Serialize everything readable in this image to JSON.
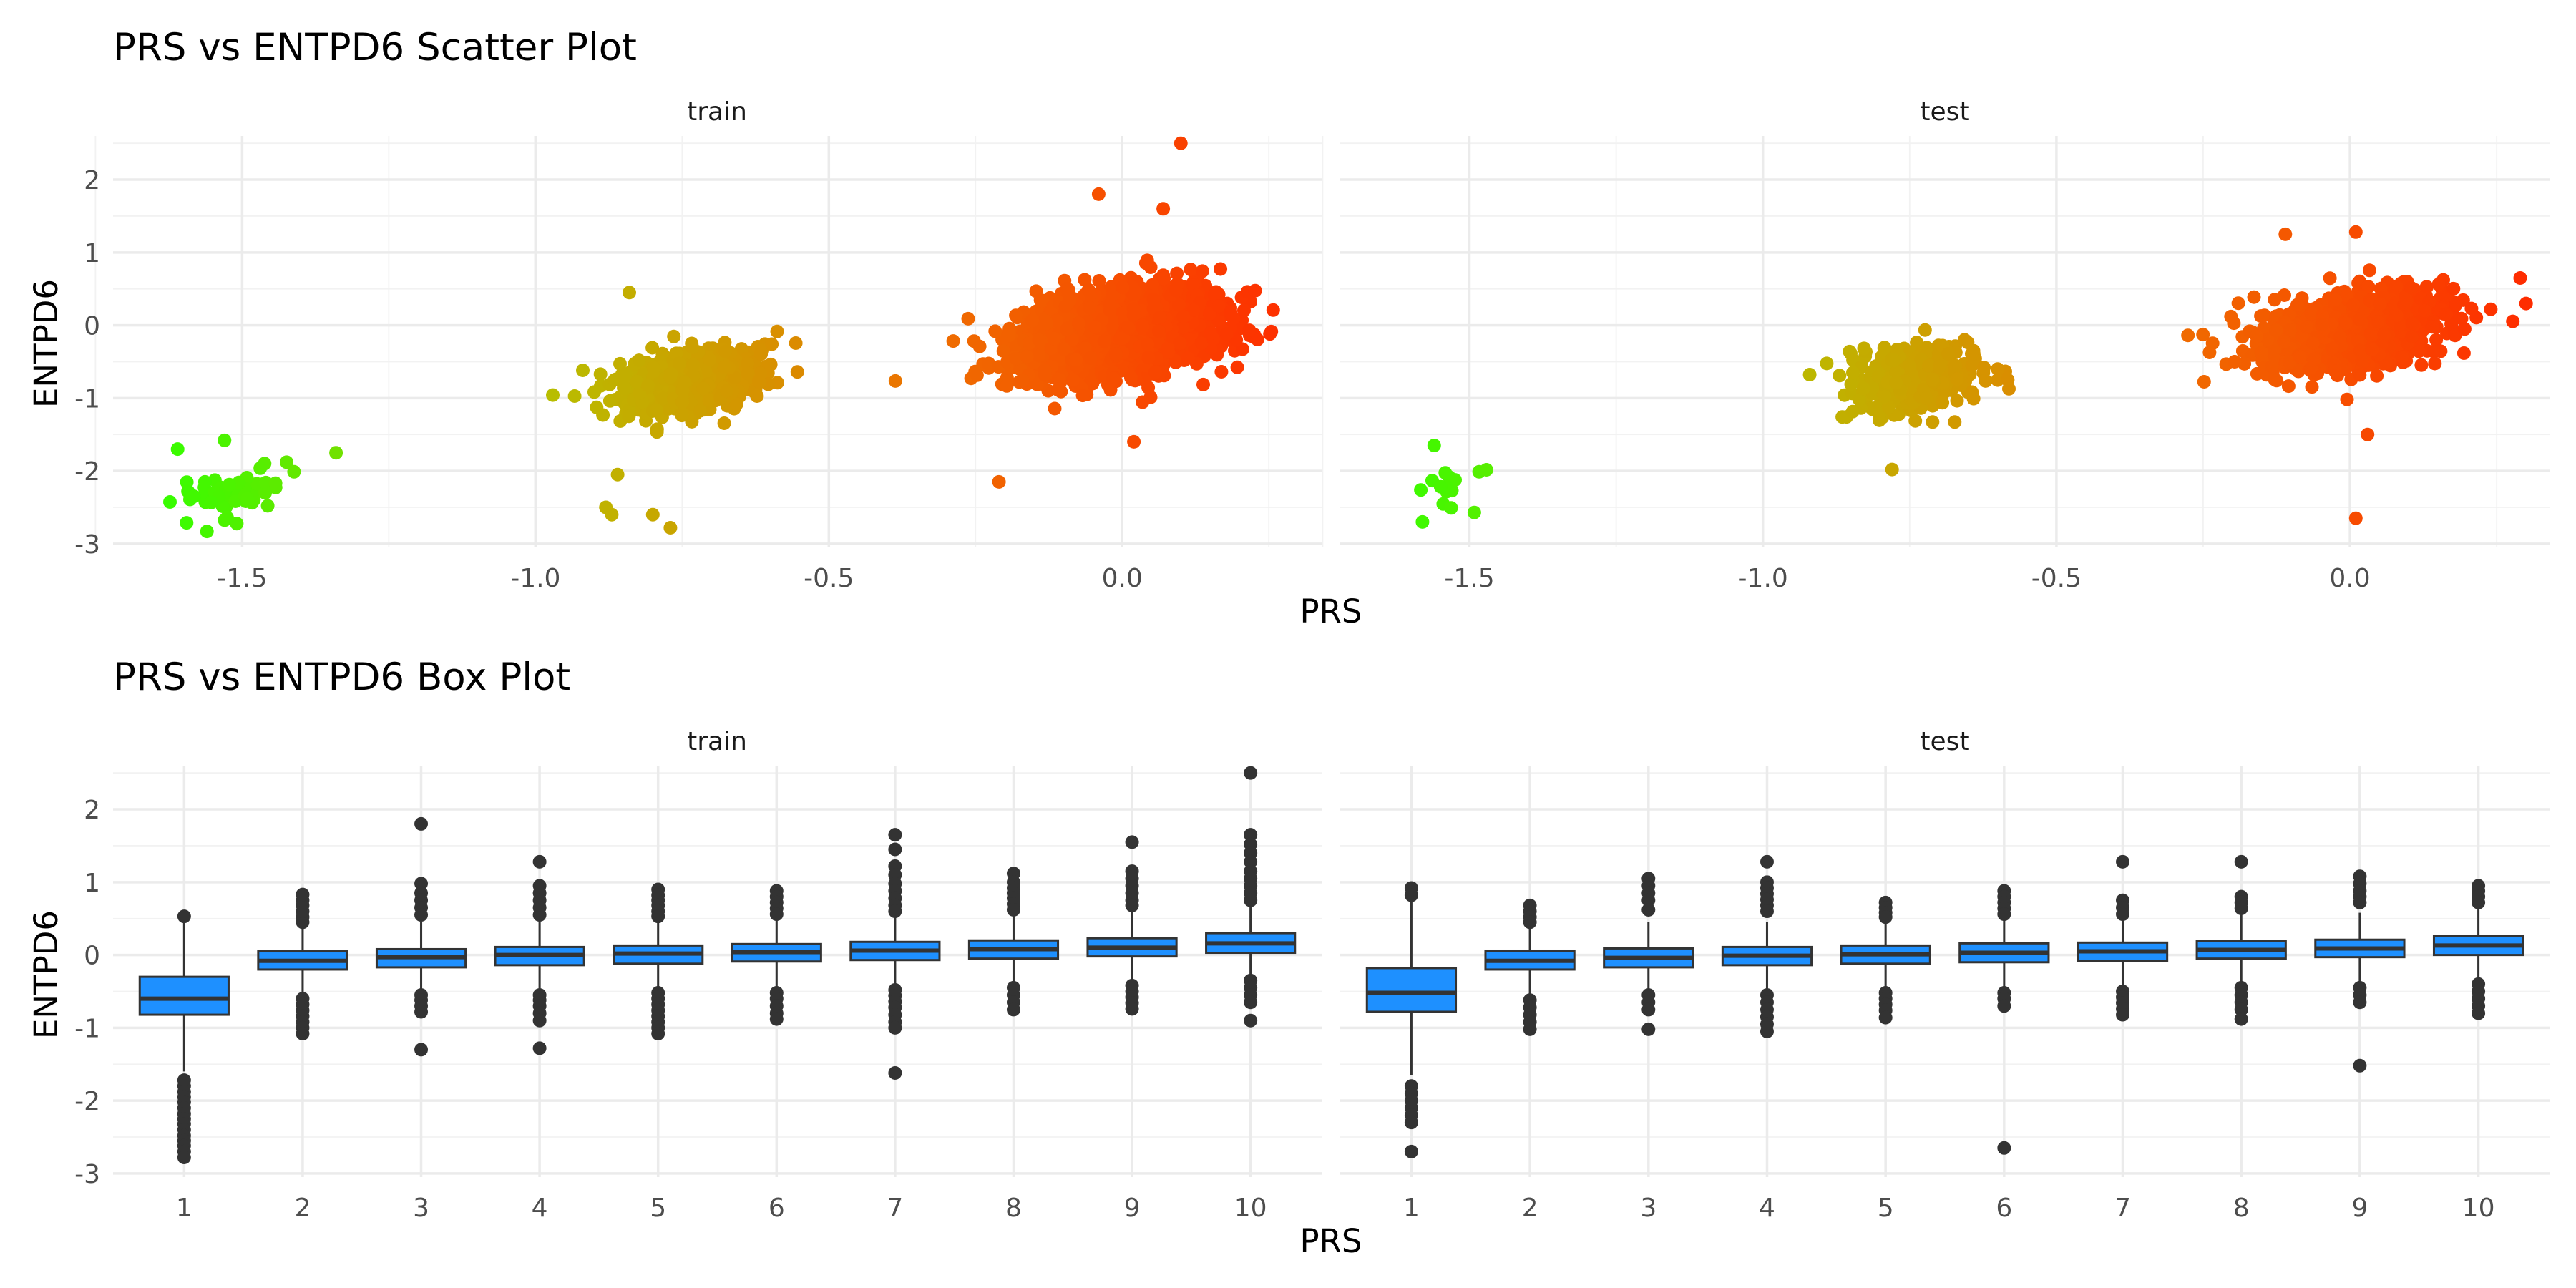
{
  "chart_data": [
    {
      "type": "scatter",
      "title": "PRS vs ENTPD6 Scatter Plot",
      "xlabel": "PRS",
      "ylabel": "ENTPD6",
      "xlim": [
        -1.72,
        0.34
      ],
      "ylim": [
        -3.05,
        2.6
      ],
      "x_ticks": [
        -1.5,
        -1.0,
        -0.5,
        0.0
      ],
      "x_tick_labels": [
        "-1.5",
        "-1.0",
        "-0.5",
        "0.0"
      ],
      "y_ticks": [
        -3,
        -2,
        -1,
        0,
        1,
        2
      ],
      "y_tick_labels": [
        "-3",
        "-2",
        "-1",
        "0",
        "1",
        "2"
      ],
      "grid": true,
      "color_gradient": [
        "#33ff00",
        "#b6c000",
        "#ee7000",
        "#ff2a00"
      ],
      "facets": [
        {
          "label": "train",
          "clusters": [
            {
              "x_mean": -1.5,
              "x_sd": 0.045,
              "y_mean": -2.3,
              "y_sd": 0.17,
              "n": 55
            },
            {
              "x_mean": -0.74,
              "x_sd": 0.06,
              "y_mean": -0.78,
              "y_sd": 0.2,
              "n": 700
            },
            {
              "x_mean": -0.01,
              "x_sd": 0.085,
              "y_mean": -0.12,
              "y_sd": 0.3,
              "n": 1800
            }
          ],
          "extra_points": [
            [
              0.1,
              2.5
            ],
            [
              -0.04,
              1.8
            ],
            [
              0.07,
              1.6
            ],
            [
              -0.84,
              0.45
            ],
            [
              -0.86,
              -2.05
            ],
            [
              -0.88,
              -2.5
            ],
            [
              -0.87,
              -2.6
            ],
            [
              -0.8,
              -2.6
            ],
            [
              -0.77,
              -2.78
            ],
            [
              -0.21,
              -2.15
            ],
            [
              0.02,
              -1.6
            ],
            [
              -1.61,
              -1.7
            ],
            [
              -1.34,
              -1.75
            ],
            [
              -1.53,
              -1.58
            ],
            [
              -1.56,
              -2.83
            ]
          ]
        },
        {
          "label": "test",
          "clusters": [
            {
              "x_mean": -1.54,
              "x_sd": 0.03,
              "y_mean": -2.15,
              "y_sd": 0.22,
              "n": 14
            },
            {
              "x_mean": -0.74,
              "x_sd": 0.055,
              "y_mean": -0.75,
              "y_sd": 0.22,
              "n": 340
            },
            {
              "x_mean": 0.0,
              "x_sd": 0.08,
              "y_mean": -0.08,
              "y_sd": 0.26,
              "n": 900
            }
          ],
          "extra_points": [
            [
              0.01,
              1.28
            ],
            [
              -0.11,
              1.25
            ],
            [
              0.29,
              0.65
            ],
            [
              0.3,
              0.3
            ],
            [
              -0.78,
              -1.98
            ],
            [
              0.03,
              -1.5
            ],
            [
              0.01,
              -2.65
            ],
            [
              -1.56,
              -1.65
            ],
            [
              -1.58,
              -2.7
            ],
            [
              -0.6,
              -0.6
            ]
          ]
        }
      ]
    },
    {
      "type": "box",
      "title": "PRS vs ENTPD6 Box Plot",
      "xlabel": "PRS",
      "ylabel": "ENTPD6",
      "categories": [
        "1",
        "2",
        "3",
        "4",
        "5",
        "6",
        "7",
        "8",
        "9",
        "10"
      ],
      "ylim": [
        -3.05,
        2.6
      ],
      "y_ticks": [
        -3,
        -2,
        -1,
        0,
        1,
        2
      ],
      "y_tick_labels": [
        "-3",
        "-2",
        "-1",
        "0",
        "1",
        "2"
      ],
      "grid": true,
      "box_color": "#1e90ff",
      "facets": [
        {
          "label": "train",
          "boxes": [
            {
              "q1": -0.82,
              "median": -0.6,
              "q3": -0.3,
              "whisker_low": -1.6,
              "whisker_high": 0.48,
              "outliers": [
                0.53,
                -1.72,
                -1.8,
                -1.88,
                -1.95,
                -2.02,
                -2.1,
                -2.18,
                -2.25,
                -2.32,
                -2.4,
                -2.48,
                -2.55,
                -2.62,
                -2.7,
                -2.78
              ]
            },
            {
              "q1": -0.2,
              "median": -0.08,
              "q3": 0.05,
              "whisker_low": -0.55,
              "whisker_high": 0.4,
              "outliers": [
                0.45,
                0.52,
                0.6,
                0.68,
                0.75,
                0.83,
                -0.6,
                -0.68,
                -0.76,
                -0.84,
                -0.92,
                -1.0,
                -1.08
              ]
            },
            {
              "q1": -0.17,
              "median": -0.03,
              "q3": 0.08,
              "whisker_low": -0.5,
              "whisker_high": 0.45,
              "outliers": [
                1.8,
                0.98,
                0.85,
                0.75,
                0.65,
                0.55,
                -0.55,
                -0.62,
                -0.7,
                -0.78,
                -1.3
              ]
            },
            {
              "q1": -0.14,
              "median": 0.0,
              "q3": 0.11,
              "whisker_low": -0.48,
              "whisker_high": 0.45,
              "outliers": [
                1.28,
                0.95,
                0.85,
                0.75,
                0.65,
                0.55,
                -0.55,
                -0.62,
                -0.7,
                -0.8,
                -0.9,
                -1.28
              ]
            },
            {
              "q1": -0.12,
              "median": 0.02,
              "q3": 0.13,
              "whisker_low": -0.48,
              "whisker_high": 0.48,
              "outliers": [
                0.9,
                0.82,
                0.75,
                0.68,
                0.6,
                0.53,
                -0.52,
                -0.6,
                -0.68,
                -0.76,
                -0.84,
                -0.92,
                -1.0,
                -1.08
              ]
            },
            {
              "q1": -0.09,
              "median": 0.04,
              "q3": 0.15,
              "whisker_low": -0.45,
              "whisker_high": 0.5,
              "outliers": [
                0.88,
                0.8,
                0.72,
                0.64,
                0.56,
                -0.52,
                -0.6,
                -0.7,
                -0.8,
                -0.88
              ]
            },
            {
              "q1": -0.07,
              "median": 0.06,
              "q3": 0.18,
              "whisker_low": -0.42,
              "whisker_high": 0.52,
              "outliers": [
                1.65,
                1.45,
                1.22,
                1.1,
                0.98,
                0.88,
                0.78,
                0.68,
                0.6,
                -0.48,
                -0.56,
                -0.64,
                -0.72,
                -0.82,
                -0.92,
                -1.0,
                -1.62
              ]
            },
            {
              "q1": -0.05,
              "median": 0.08,
              "q3": 0.2,
              "whisker_low": -0.42,
              "whisker_high": 0.55,
              "outliers": [
                1.12,
                1.0,
                0.92,
                0.85,
                0.78,
                0.7,
                0.62,
                -0.45,
                -0.55,
                -0.65,
                -0.75
              ]
            },
            {
              "q1": -0.02,
              "median": 0.1,
              "q3": 0.23,
              "whisker_low": -0.4,
              "whisker_high": 0.6,
              "outliers": [
                1.55,
                1.15,
                1.05,
                0.95,
                0.85,
                0.75,
                0.68,
                -0.42,
                -0.5,
                -0.58,
                -0.66,
                -0.74
              ]
            },
            {
              "q1": 0.03,
              "median": 0.16,
              "q3": 0.3,
              "whisker_low": -0.3,
              "whisker_high": 0.68,
              "outliers": [
                2.5,
                1.65,
                1.52,
                1.4,
                1.28,
                1.15,
                1.05,
                0.95,
                0.85,
                0.75,
                -0.35,
                -0.45,
                -0.55,
                -0.65,
                -0.9
              ]
            }
          ]
        },
        {
          "label": "test",
          "boxes": [
            {
              "q1": -0.78,
              "median": -0.52,
              "q3": -0.18,
              "whisker_low": -1.65,
              "whisker_high": 0.75,
              "outliers": [
                0.92,
                0.82,
                -1.8,
                -1.9,
                -2.0,
                -2.1,
                -2.2,
                -2.3,
                -2.7
              ]
            },
            {
              "q1": -0.2,
              "median": -0.08,
              "q3": 0.06,
              "whisker_low": -0.55,
              "whisker_high": 0.42,
              "outliers": [
                0.68,
                0.6,
                0.52,
                0.45,
                -0.62,
                -0.72,
                -0.82,
                -0.92,
                -1.02
              ]
            },
            {
              "q1": -0.17,
              "median": -0.04,
              "q3": 0.09,
              "whisker_low": -0.48,
              "whisker_high": 0.45,
              "outliers": [
                1.05,
                0.95,
                0.85,
                0.75,
                0.62,
                -0.55,
                -0.65,
                -0.75,
                -1.02
              ]
            },
            {
              "q1": -0.14,
              "median": -0.01,
              "q3": 0.11,
              "whisker_low": -0.48,
              "whisker_high": 0.45,
              "outliers": [
                1.28,
                1.0,
                0.92,
                0.84,
                0.76,
                0.68,
                0.6,
                -0.55,
                -0.65,
                -0.75,
                -0.85,
                -0.95,
                -1.05
              ]
            },
            {
              "q1": -0.12,
              "median": 0.01,
              "q3": 0.13,
              "whisker_low": -0.46,
              "whisker_high": 0.46,
              "outliers": [
                0.72,
                0.65,
                0.58,
                0.52,
                -0.52,
                -0.6,
                -0.68,
                -0.76,
                -0.86
              ]
            },
            {
              "q1": -0.1,
              "median": 0.03,
              "q3": 0.16,
              "whisker_low": -0.44,
              "whisker_high": 0.5,
              "outliers": [
                0.88,
                0.8,
                0.72,
                0.64,
                0.56,
                -0.52,
                -0.6,
                -0.7,
                -2.65
              ]
            },
            {
              "q1": -0.08,
              "median": 0.05,
              "q3": 0.17,
              "whisker_low": -0.44,
              "whisker_high": 0.5,
              "outliers": [
                1.28,
                0.75,
                0.65,
                0.56,
                -0.5,
                -0.58,
                -0.66,
                -0.74,
                -0.82
              ]
            },
            {
              "q1": -0.05,
              "median": 0.07,
              "q3": 0.19,
              "whisker_low": -0.42,
              "whisker_high": 0.55,
              "outliers": [
                1.28,
                0.8,
                0.72,
                0.64,
                -0.45,
                -0.55,
                -0.65,
                -0.75,
                -0.88
              ]
            },
            {
              "q1": -0.03,
              "median": 0.09,
              "q3": 0.21,
              "whisker_low": -0.4,
              "whisker_high": 0.58,
              "outliers": [
                1.08,
                0.98,
                0.88,
                0.8,
                0.72,
                -0.45,
                -0.55,
                -0.65,
                -1.52
              ]
            },
            {
              "q1": 0.0,
              "median": 0.13,
              "q3": 0.26,
              "whisker_low": -0.35,
              "whisker_high": 0.65,
              "outliers": [
                0.95,
                0.88,
                0.8,
                0.72,
                -0.4,
                -0.5,
                -0.6,
                -0.7,
                -0.8
              ]
            }
          ]
        }
      ]
    }
  ]
}
